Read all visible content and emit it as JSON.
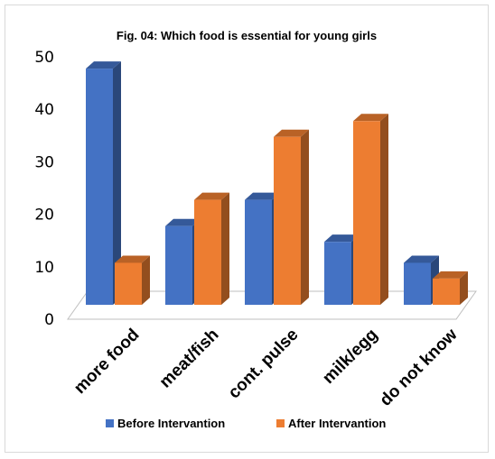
{
  "chart_data": {
    "type": "bar",
    "title": "Fig. 04: Which food is essential for young girls",
    "categories": [
      "more food",
      "meat/fish",
      "cont. pulse",
      "milk/egg",
      "do not know"
    ],
    "series": [
      {
        "name": "Before Intervantion",
        "values": [
          45,
          15,
          20,
          12,
          8
        ],
        "color": "#4472c4"
      },
      {
        "name": "After Intervantion",
        "values": [
          8,
          20,
          32,
          35,
          5
        ],
        "color": "#ed7d31"
      }
    ],
    "xlabel": "",
    "ylabel": "",
    "ylim": [
      0,
      50
    ],
    "yticks": [
      "0",
      "10",
      "20",
      "30",
      "40",
      "50"
    ],
    "grid": false,
    "legend_position": "bottom",
    "style": "3d-clustered-column"
  }
}
